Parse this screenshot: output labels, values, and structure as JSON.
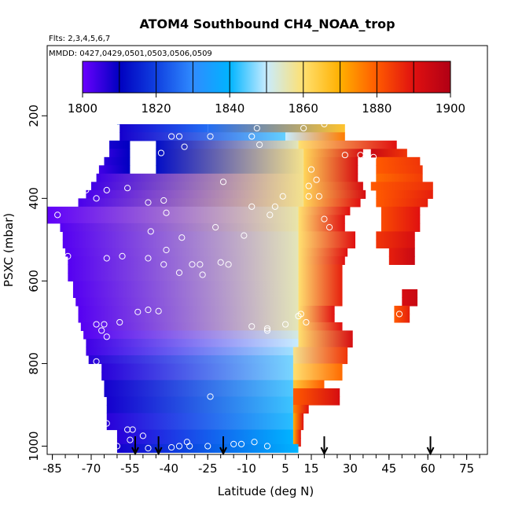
{
  "chart_data": {
    "type": "heatmap",
    "title": "ATOM4 Southbound CH4_NOAA_trop",
    "flights_note": "Flts: 2,3,4,5,6,7",
    "dates_note": "MMDD: 0427,0429,0501,0503,0506,0509",
    "xlabel": "Latitude (deg N)",
    "ylabel": "PSXC (mbar)",
    "xlim": [
      -87,
      83
    ],
    "ylim": [
      1020,
      30
    ],
    "x_ticks": [
      -85,
      -70,
      -55,
      -40,
      -25,
      -10,
      5,
      15,
      30,
      45,
      60,
      75
    ],
    "x_minor_step": 5,
    "y_ticks": [
      200,
      400,
      600,
      800,
      1000
    ],
    "colorbar": {
      "min": 1800,
      "max": 1900,
      "tick_values": [
        1800,
        1820,
        1840,
        1860,
        1880,
        1900
      ],
      "divisions": 10,
      "colors": [
        "#6a00ff",
        "#0000c0",
        "#1040e0",
        "#2f8bff",
        "#00b4ff",
        "#c8ecff",
        "#ffe070",
        "#ffb000",
        "#ff5a00",
        "#e01010",
        "#b00015"
      ]
    },
    "arrows_latitude": [
      -53,
      -44,
      -19,
      20,
      61
    ],
    "bands": [
      {
        "p": 170,
        "x0": -57,
        "x1": -19,
        "v0": 1834,
        "v1": 1841
      },
      {
        "p": 190,
        "x0": -57,
        "x1": -19,
        "v0": 1836,
        "v1": 1843
      },
      {
        "p": 210,
        "x0": -60,
        "x1": 0,
        "v0": 1822,
        "v1": 1848
      },
      {
        "p": 210,
        "x0": 0,
        "x1": 22,
        "v0": 1848,
        "v1": 1862
      },
      {
        "p": 230,
        "x0": -59,
        "x1": -25,
        "v0": 1808,
        "v1": 1826
      },
      {
        "p": 230,
        "x0": -25,
        "x1": 28,
        "v0": 1826,
        "v1": 1866
      },
      {
        "p": 250,
        "x0": -59,
        "x1": 5,
        "v0": 1808,
        "v1": 1845
      },
      {
        "p": 250,
        "x0": 5,
        "x1": 28,
        "v0": 1850,
        "v1": 1876
      },
      {
        "p": 270,
        "x0": -63,
        "x1": -55,
        "v0": 1808,
        "v1": 1810
      },
      {
        "p": 270,
        "x0": -45,
        "x1": 10,
        "v0": 1812,
        "v1": 1855
      },
      {
        "p": 270,
        "x0": 10,
        "x1": 48,
        "v0": 1860,
        "v1": 1890
      },
      {
        "p": 290,
        "x0": -63,
        "x1": -55,
        "v0": 1806,
        "v1": 1810
      },
      {
        "p": 290,
        "x0": -45,
        "x1": 12,
        "v0": 1812,
        "v1": 1858
      },
      {
        "p": 290,
        "x0": 12,
        "x1": 35,
        "v0": 1862,
        "v1": 1892
      },
      {
        "p": 290,
        "x0": 38,
        "x1": 52,
        "v0": 1895,
        "v1": 1885
      },
      {
        "p": 310,
        "x0": -65,
        "x1": -55,
        "v0": 1806,
        "v1": 1810
      },
      {
        "p": 310,
        "x0": -45,
        "x1": 12,
        "v0": 1812,
        "v1": 1858
      },
      {
        "p": 310,
        "x0": 12,
        "x1": 33,
        "v0": 1862,
        "v1": 1892
      },
      {
        "p": 310,
        "x0": 40,
        "x1": 57,
        "v0": 1880,
        "v1": 1885
      },
      {
        "p": 330,
        "x0": -67,
        "x1": -55,
        "v0": 1804,
        "v1": 1810
      },
      {
        "p": 330,
        "x0": -45,
        "x1": 12,
        "v0": 1812,
        "v1": 1858
      },
      {
        "p": 330,
        "x0": 12,
        "x1": 33,
        "v0": 1862,
        "v1": 1892
      },
      {
        "p": 330,
        "x0": 40,
        "x1": 58,
        "v0": 1880,
        "v1": 1885
      },
      {
        "p": 350,
        "x0": -68,
        "x1": 12,
        "v0": 1804,
        "v1": 1858
      },
      {
        "p": 350,
        "x0": 12,
        "x1": 33,
        "v0": 1862,
        "v1": 1892
      },
      {
        "p": 350,
        "x0": 40,
        "x1": 58,
        "v0": 1878,
        "v1": 1884
      },
      {
        "p": 370,
        "x0": -70,
        "x1": 12,
        "v0": 1804,
        "v1": 1858
      },
      {
        "p": 370,
        "x0": 12,
        "x1": 35,
        "v0": 1862,
        "v1": 1892
      },
      {
        "p": 370,
        "x0": 38,
        "x1": 62,
        "v0": 1880,
        "v1": 1886
      },
      {
        "p": 390,
        "x0": -72,
        "x1": 12,
        "v0": 1803,
        "v1": 1858
      },
      {
        "p": 390,
        "x0": 12,
        "x1": 36,
        "v0": 1862,
        "v1": 1892
      },
      {
        "p": 390,
        "x0": 40,
        "x1": 62,
        "v0": 1880,
        "v1": 1888
      },
      {
        "p": 410,
        "x0": -75,
        "x1": 12,
        "v0": 1803,
        "v1": 1858
      },
      {
        "p": 410,
        "x0": 12,
        "x1": 34,
        "v0": 1862,
        "v1": 1890
      },
      {
        "p": 410,
        "x0": 40,
        "x1": 60,
        "v0": 1880,
        "v1": 1888
      },
      {
        "p": 430,
        "x0": -87,
        "x1": 10,
        "v0": 1801,
        "v1": 1856
      },
      {
        "p": 430,
        "x0": 10,
        "x1": 30,
        "v0": 1860,
        "v1": 1890
      },
      {
        "p": 430,
        "x0": 42,
        "x1": 57,
        "v0": 1882,
        "v1": 1890
      },
      {
        "p": 450,
        "x0": -87,
        "x1": 10,
        "v0": 1801,
        "v1": 1856
      },
      {
        "p": 450,
        "x0": 10,
        "x1": 28,
        "v0": 1860,
        "v1": 1890
      },
      {
        "p": 450,
        "x0": 42,
        "x1": 57,
        "v0": 1882,
        "v1": 1890
      },
      {
        "p": 470,
        "x0": -82,
        "x1": 10,
        "v0": 1802,
        "v1": 1856
      },
      {
        "p": 470,
        "x0": 10,
        "x1": 28,
        "v0": 1860,
        "v1": 1890
      },
      {
        "p": 470,
        "x0": 42,
        "x1": 57,
        "v0": 1882,
        "v1": 1890
      },
      {
        "p": 490,
        "x0": -81,
        "x1": 10,
        "v0": 1802,
        "v1": 1855
      },
      {
        "p": 490,
        "x0": 10,
        "x1": 32,
        "v0": 1860,
        "v1": 1890
      },
      {
        "p": 490,
        "x0": 40,
        "x1": 55,
        "v0": 1885,
        "v1": 1892
      },
      {
        "p": 510,
        "x0": -81,
        "x1": 10,
        "v0": 1802,
        "v1": 1855
      },
      {
        "p": 510,
        "x0": 10,
        "x1": 32,
        "v0": 1860,
        "v1": 1890
      },
      {
        "p": 510,
        "x0": 40,
        "x1": 55,
        "v0": 1885,
        "v1": 1892
      },
      {
        "p": 530,
        "x0": -80,
        "x1": 10,
        "v0": 1802,
        "v1": 1855
      },
      {
        "p": 530,
        "x0": 10,
        "x1": 29,
        "v0": 1860,
        "v1": 1890
      },
      {
        "p": 530,
        "x0": 45,
        "x1": 55,
        "v0": 1888,
        "v1": 1895
      },
      {
        "p": 550,
        "x0": -79,
        "x1": 10,
        "v0": 1802,
        "v1": 1855
      },
      {
        "p": 550,
        "x0": 10,
        "x1": 28,
        "v0": 1860,
        "v1": 1890
      },
      {
        "p": 550,
        "x0": 45,
        "x1": 55,
        "v0": 1888,
        "v1": 1895
      },
      {
        "p": 570,
        "x0": -79,
        "x1": 10,
        "v0": 1802,
        "v1": 1855
      },
      {
        "p": 570,
        "x0": 10,
        "x1": 27,
        "v0": 1860,
        "v1": 1888
      },
      {
        "p": 590,
        "x0": -79,
        "x1": 10,
        "v0": 1802,
        "v1": 1855
      },
      {
        "p": 590,
        "x0": 10,
        "x1": 27,
        "v0": 1860,
        "v1": 1888
      },
      {
        "p": 610,
        "x0": -77,
        "x1": 10,
        "v0": 1802,
        "v1": 1855
      },
      {
        "p": 610,
        "x0": 10,
        "x1": 27,
        "v0": 1860,
        "v1": 1888
      },
      {
        "p": 630,
        "x0": -77,
        "x1": 10,
        "v0": 1802,
        "v1": 1855
      },
      {
        "p": 630,
        "x0": 10,
        "x1": 27,
        "v0": 1860,
        "v1": 1888
      },
      {
        "p": 630,
        "x0": 50,
        "x1": 56,
        "v0": 1892,
        "v1": 1895
      },
      {
        "p": 650,
        "x0": -76,
        "x1": 10,
        "v0": 1802,
        "v1": 1855
      },
      {
        "p": 650,
        "x0": 10,
        "x1": 27,
        "v0": 1860,
        "v1": 1888
      },
      {
        "p": 650,
        "x0": 50,
        "x1": 56,
        "v0": 1892,
        "v1": 1895
      },
      {
        "p": 670,
        "x0": -75,
        "x1": 10,
        "v0": 1802,
        "v1": 1855
      },
      {
        "p": 670,
        "x0": 10,
        "x1": 24,
        "v0": 1860,
        "v1": 1890
      },
      {
        "p": 670,
        "x0": 47,
        "x1": 53,
        "v0": 1880,
        "v1": 1888
      },
      {
        "p": 690,
        "x0": -75,
        "x1": 10,
        "v0": 1802,
        "v1": 1855
      },
      {
        "p": 690,
        "x0": 10,
        "x1": 24,
        "v0": 1860,
        "v1": 1890
      },
      {
        "p": 690,
        "x0": 47,
        "x1": 53,
        "v0": 1880,
        "v1": 1888
      },
      {
        "p": 710,
        "x0": -74,
        "x1": 10,
        "v0": 1802,
        "v1": 1855
      },
      {
        "p": 710,
        "x0": 10,
        "x1": 27,
        "v0": 1860,
        "v1": 1890
      },
      {
        "p": 730,
        "x0": -73,
        "x1": 10,
        "v0": 1802,
        "v1": 1852
      },
      {
        "p": 730,
        "x0": 10,
        "x1": 31,
        "v0": 1860,
        "v1": 1892
      },
      {
        "p": 750,
        "x0": -72,
        "x1": 10,
        "v0": 1804,
        "v1": 1850
      },
      {
        "p": 750,
        "x0": 10,
        "x1": 31,
        "v0": 1860,
        "v1": 1892
      },
      {
        "p": 770,
        "x0": -72,
        "x1": 8,
        "v0": 1804,
        "v1": 1848
      },
      {
        "p": 770,
        "x0": 8,
        "x1": 29,
        "v0": 1858,
        "v1": 1885
      },
      {
        "p": 790,
        "x0": -71,
        "x1": 8,
        "v0": 1806,
        "v1": 1846
      },
      {
        "p": 790,
        "x0": 8,
        "x1": 29,
        "v0": 1858,
        "v1": 1885
      },
      {
        "p": 810,
        "x0": -66,
        "x1": 8,
        "v0": 1806,
        "v1": 1846
      },
      {
        "p": 810,
        "x0": 8,
        "x1": 27,
        "v0": 1860,
        "v1": 1878
      },
      {
        "p": 830,
        "x0": -66,
        "x1": 8,
        "v0": 1806,
        "v1": 1846
      },
      {
        "p": 830,
        "x0": 8,
        "x1": 27,
        "v0": 1860,
        "v1": 1878
      },
      {
        "p": 850,
        "x0": -65,
        "x1": 8,
        "v0": 1808,
        "v1": 1844
      },
      {
        "p": 850,
        "x0": 8,
        "x1": 20,
        "v0": 1865,
        "v1": 1880
      },
      {
        "p": 870,
        "x0": -65,
        "x1": 8,
        "v0": 1808,
        "v1": 1844
      },
      {
        "p": 870,
        "x0": 8,
        "x1": 26,
        "v0": 1880,
        "v1": 1892
      },
      {
        "p": 890,
        "x0": -64,
        "x1": 8,
        "v0": 1808,
        "v1": 1843
      },
      {
        "p": 890,
        "x0": 8,
        "x1": 26,
        "v0": 1880,
        "v1": 1892
      },
      {
        "p": 910,
        "x0": -64,
        "x1": 8,
        "v0": 1808,
        "v1": 1843
      },
      {
        "p": 910,
        "x0": 8,
        "x1": 14,
        "v0": 1875,
        "v1": 1890
      },
      {
        "p": 930,
        "x0": -64,
        "x1": 8,
        "v0": 1806,
        "v1": 1842
      },
      {
        "p": 930,
        "x0": 8,
        "x1": 12,
        "v0": 1870,
        "v1": 1890
      },
      {
        "p": 950,
        "x0": -64,
        "x1": 8,
        "v0": 1806,
        "v1": 1842
      },
      {
        "p": 950,
        "x0": 8,
        "x1": 12,
        "v0": 1870,
        "v1": 1890
      },
      {
        "p": 970,
        "x0": -60,
        "x1": 8,
        "v0": 1806,
        "v1": 1840
      },
      {
        "p": 970,
        "x0": 8,
        "x1": 11,
        "v0": 1870,
        "v1": 1890
      },
      {
        "p": 990,
        "x0": -60,
        "x1": 8,
        "v0": 1806,
        "v1": 1840
      },
      {
        "p": 990,
        "x0": 8,
        "x1": 11,
        "v0": 1870,
        "v1": 1890
      },
      {
        "p": 1005,
        "x0": -60,
        "x1": 10,
        "v0": 1808,
        "v1": 1840
      }
    ],
    "samples": [
      [
        -60,
        205
      ],
      [
        -43,
        205
      ],
      [
        -2,
        205
      ],
      [
        -39,
        250
      ],
      [
        -36,
        250
      ],
      [
        -24,
        250
      ],
      [
        -8,
        250
      ],
      [
        -6,
        230
      ],
      [
        -47,
        270
      ],
      [
        -34,
        275
      ],
      [
        -5,
        270
      ],
      [
        -43,
        290
      ],
      [
        12,
        230
      ],
      [
        -72,
        380
      ],
      [
        -64,
        380
      ],
      [
        -56,
        375
      ],
      [
        -68,
        400
      ],
      [
        -48,
        410
      ],
      [
        -42,
        405
      ],
      [
        -19,
        360
      ],
      [
        -8,
        420
      ],
      [
        -41,
        435
      ],
      [
        1,
        420
      ],
      [
        -1,
        440
      ],
      [
        -35,
        495
      ],
      [
        -22,
        470
      ],
      [
        -11,
        490
      ],
      [
        -83,
        440
      ],
      [
        -47,
        480
      ],
      [
        -41,
        525
      ],
      [
        -58,
        540
      ],
      [
        -64,
        545
      ],
      [
        -48,
        545
      ],
      [
        -79,
        540
      ],
      [
        -31,
        560
      ],
      [
        -28,
        560
      ],
      [
        -20,
        555
      ],
      [
        -42,
        560
      ],
      [
        -17,
        560
      ],
      [
        -36,
        580
      ],
      [
        -27,
        585
      ],
      [
        -52,
        675
      ],
      [
        -48,
        670
      ],
      [
        -44,
        673
      ],
      [
        -68,
        705
      ],
      [
        -65,
        705
      ],
      [
        -59,
        700
      ],
      [
        -66,
        720
      ],
      [
        -64,
        735
      ],
      [
        -2,
        715
      ],
      [
        -2,
        720
      ],
      [
        5,
        705
      ],
      [
        -8,
        710
      ],
      [
        10,
        685
      ],
      [
        13,
        700
      ],
      [
        -68,
        795
      ],
      [
        -24,
        880
      ],
      [
        -64,
        945
      ],
      [
        -56,
        960
      ],
      [
        -54,
        960
      ],
      [
        -50,
        975
      ],
      [
        -60,
        1000
      ],
      [
        -48,
        1005
      ],
      [
        -36,
        1000
      ],
      [
        -32,
        1000
      ],
      [
        -25,
        1000
      ],
      [
        -15,
        995
      ],
      [
        -12,
        995
      ],
      [
        -2,
        1000
      ],
      [
        -7,
        990
      ],
      [
        -39,
        1003
      ],
      [
        -55,
        985
      ],
      [
        -33,
        990
      ],
      [
        15,
        330
      ],
      [
        17,
        355
      ],
      [
        14,
        370
      ],
      [
        18,
        395
      ],
      [
        14,
        395
      ],
      [
        4,
        395
      ],
      [
        20,
        450
      ],
      [
        22,
        470
      ],
      [
        28,
        295
      ],
      [
        34,
        295
      ],
      [
        35,
        435
      ],
      [
        39,
        300
      ],
      [
        49,
        680
      ],
      [
        11,
        680
      ],
      [
        20,
        220
      ]
    ]
  }
}
